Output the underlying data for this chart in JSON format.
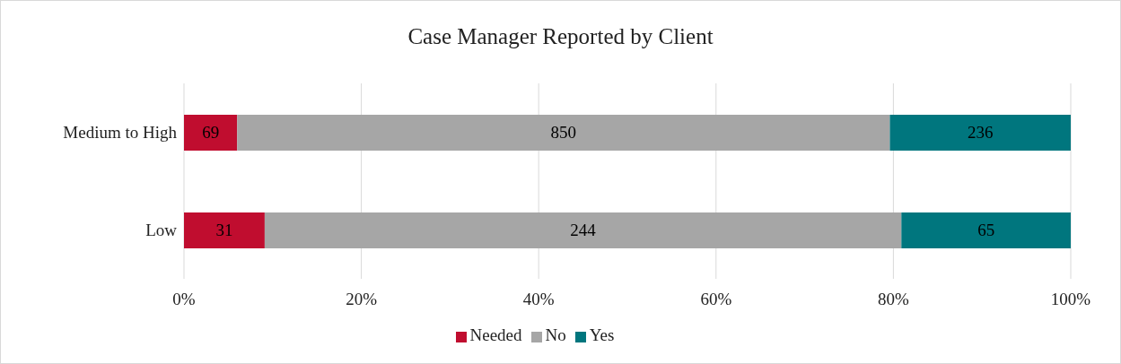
{
  "chart_data": {
    "type": "bar",
    "title": "Case Manager Reported by Client",
    "orientation": "horizontal",
    "stacked": true,
    "categories": [
      "Medium to High",
      "Low"
    ],
    "series": [
      {
        "name": "Needed",
        "color": "#c00d2f",
        "values": [
          6.0,
          9.1
        ]
      },
      {
        "name": "No",
        "color": "#a6a6a6",
        "values": [
          73.6,
          71.8
        ]
      },
      {
        "name": "Yes",
        "color": "#00767e",
        "values": [
          20.4,
          19.1
        ]
      }
    ],
    "annotations": [
      "69",
      "850",
      "236",
      "31",
      "244",
      "65"
    ],
    "xlim": [
      0,
      100
    ],
    "xticks": [
      {
        "value": 0,
        "label": "0%"
      },
      {
        "value": 20,
        "label": "20%"
      },
      {
        "value": 40,
        "label": "40%"
      },
      {
        "value": 60,
        "label": "60%"
      },
      {
        "value": 80,
        "label": "80%"
      },
      {
        "value": 100,
        "label": "100%"
      }
    ],
    "grid": "x",
    "legend": "bottom"
  }
}
